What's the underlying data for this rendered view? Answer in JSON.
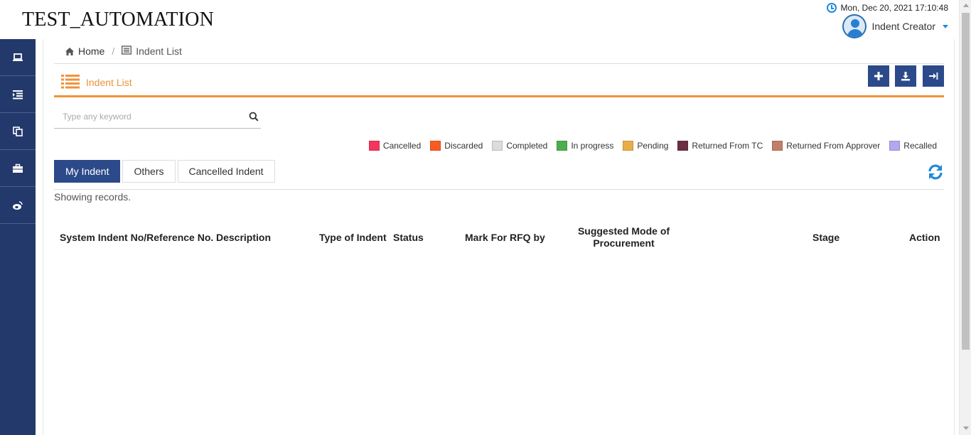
{
  "app": {
    "title": "TEST_AUTOMATION"
  },
  "header": {
    "datetime": "Mon, Dec 20, 2021 17:10:48",
    "user_name": "Indent Creator"
  },
  "sidebar": {
    "items": [
      {
        "icon": "laptop-icon"
      },
      {
        "icon": "indent-list-icon"
      },
      {
        "icon": "copy-icon"
      },
      {
        "icon": "briefcase-icon"
      },
      {
        "icon": "weibo-icon"
      }
    ]
  },
  "breadcrumb": {
    "home": "Home",
    "current": "Indent List"
  },
  "page": {
    "title": "Indent List",
    "actions": [
      {
        "name": "add-button",
        "icon": "plus-icon"
      },
      {
        "name": "download-button",
        "icon": "download-icon"
      },
      {
        "name": "sign-in-button",
        "icon": "sign-in-icon"
      }
    ]
  },
  "search": {
    "placeholder": "Type any keyword",
    "value": ""
  },
  "legend": [
    {
      "label": "Cancelled",
      "color": "#f5365c"
    },
    {
      "label": "Discarded",
      "color": "#fb5b22"
    },
    {
      "label": "Completed",
      "color": "#dcdcdc"
    },
    {
      "label": "In progress",
      "color": "#4cae4c"
    },
    {
      "label": "Pending",
      "color": "#e9ad47"
    },
    {
      "label": "Returned From TC",
      "color": "#6b2f45"
    },
    {
      "label": "Returned From Approver",
      "color": "#c17f6a"
    },
    {
      "label": "Recalled",
      "color": "#b3a7f1"
    }
  ],
  "tabs": [
    {
      "label": "My Indent",
      "active": true
    },
    {
      "label": "Others",
      "active": false
    },
    {
      "label": "Cancelled Indent",
      "active": false
    }
  ],
  "records_text": "Showing records.",
  "table": {
    "columns": [
      "System Indent No/Reference No.",
      "Description",
      "Type of Indent",
      "Status",
      "Mark For RFQ by",
      "Suggested Mode of Procurement",
      "Stage",
      "Action"
    ]
  },
  "colors": {
    "sidebar": "#23396c",
    "accent": "#f0923a",
    "primary_button": "#2c4a8a",
    "refresh": "#1f8bd8"
  }
}
